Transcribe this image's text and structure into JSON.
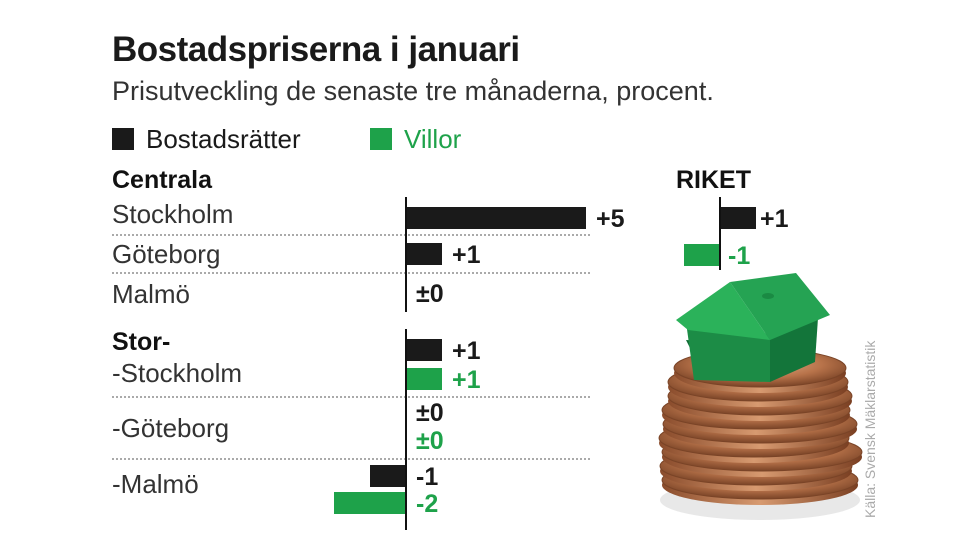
{
  "title": "Bostadspriserna i januari",
  "subtitle": "Prisutveckling de senaste tre månaderna, procent.",
  "legend": [
    {
      "label": "Bostadsrätter",
      "color": "#1a1a1a"
    },
    {
      "label": "Villor",
      "color": "#1ea24a"
    }
  ],
  "source": "Källa: Svensk Mäklarstatistik",
  "chart_data": {
    "type": "bar",
    "orientation": "horizontal",
    "unit": "percent",
    "title": "Bostadspriserna i januari",
    "subtitle": "Prisutveckling de senaste tre månaderna, procent.",
    "colors": {
      "Bostadsrätter": "#1a1a1a",
      "Villor": "#1ea24a"
    },
    "groups": [
      {
        "heading": "Centrala",
        "rows": [
          {
            "label": "Stockholm",
            "bars": [
              {
                "series": "Bostadsrätter",
                "value": 5,
                "label": "+5"
              }
            ]
          },
          {
            "label": "Göteborg",
            "bars": [
              {
                "series": "Bostadsrätter",
                "value": 1,
                "label": "+1"
              }
            ]
          },
          {
            "label": "Malmö",
            "bars": [
              {
                "series": "Bostadsrätter",
                "value": 0,
                "label": "±0"
              }
            ]
          }
        ]
      },
      {
        "heading": "Stor-",
        "rows": [
          {
            "label": "-Stockholm",
            "bars": [
              {
                "series": "Bostadsrätter",
                "value": 1,
                "label": "+1"
              },
              {
                "series": "Villor",
                "value": 1,
                "label": "+1"
              }
            ]
          },
          {
            "label": "-Göteborg",
            "bars": [
              {
                "series": "Bostadsrätter",
                "value": 0,
                "label": "±0"
              },
              {
                "series": "Villor",
                "value": 0,
                "label": "±0"
              }
            ]
          },
          {
            "label": "-Malmö",
            "bars": [
              {
                "series": "Bostadsrätter",
                "value": -1,
                "label": "-1"
              },
              {
                "series": "Villor",
                "value": -2,
                "label": "-2"
              }
            ]
          }
        ]
      }
    ],
    "riket": {
      "heading": "RIKET",
      "bars": [
        {
          "series": "Bostadsrätter",
          "value": 1,
          "label": "+1"
        },
        {
          "series": "Villor",
          "value": -1,
          "label": "-1"
        }
      ]
    }
  }
}
